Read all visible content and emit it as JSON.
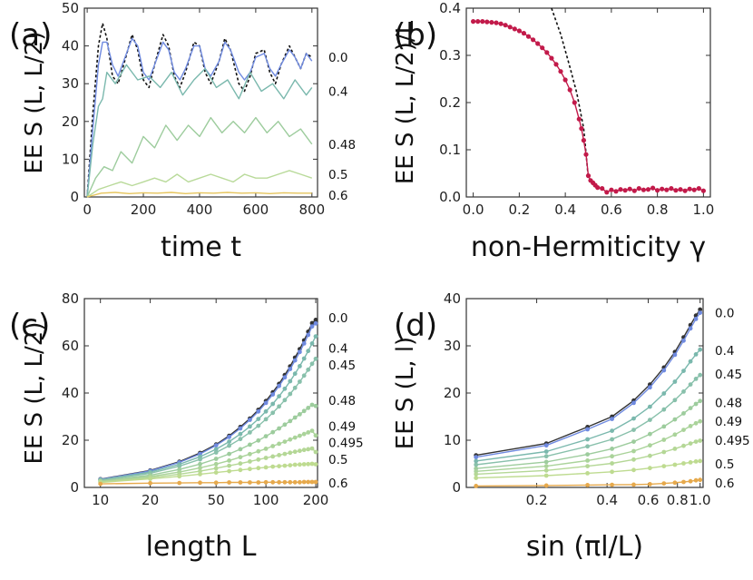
{
  "chart_data": [
    {
      "id": "a",
      "panel_label": "(a)",
      "type": "line",
      "xlabel": "time t",
      "ylabel": "EE S (L, L/2)",
      "xlim": [
        -10,
        820
      ],
      "ylim": [
        0,
        50
      ],
      "xticks": [
        0,
        200,
        400,
        600,
        800
      ],
      "yticks": [
        0,
        10,
        20,
        30,
        40,
        50
      ],
      "curve_labels": [
        {
          "text": "0.0",
          "y": 37
        },
        {
          "text": "0.4",
          "y": 28
        },
        {
          "text": "0.48",
          "y": 14
        },
        {
          "text": "0.5",
          "y": 6
        },
        {
          "text": "0.6",
          "y": 0.5
        }
      ],
      "series": [
        {
          "name": "hermitian-reference",
          "color": "#111111",
          "dashed": true,
          "x": [
            0,
            20,
            40,
            55,
            70,
            90,
            110,
            130,
            160,
            180,
            200,
            220,
            240,
            270,
            290,
            310,
            330,
            350,
            380,
            400,
            420,
            440,
            470,
            490,
            510,
            540,
            560,
            580,
            600,
            630,
            650,
            670,
            690,
            720,
            740,
            760,
            780,
            800
          ],
          "y": [
            0,
            22,
            40,
            46,
            42,
            32,
            30,
            35,
            43,
            39,
            31,
            29,
            35,
            43,
            40,
            32,
            29,
            33,
            41,
            40,
            33,
            30,
            36,
            42,
            39,
            30,
            28,
            32,
            38,
            39,
            33,
            30,
            35,
            40,
            37,
            34,
            38,
            37
          ]
        },
        {
          "name": "gamma-0.0",
          "color": "#6f8ae0",
          "x": [
            0,
            20,
            40,
            55,
            70,
            90,
            110,
            130,
            160,
            180,
            200,
            220,
            240,
            270,
            290,
            310,
            330,
            350,
            380,
            400,
            420,
            440,
            470,
            490,
            510,
            540,
            560,
            580,
            600,
            630,
            650,
            670,
            690,
            720,
            740,
            760,
            780,
            800
          ],
          "y": [
            0,
            18,
            35,
            41,
            41,
            35,
            32,
            36,
            42,
            40,
            33,
            31,
            35,
            41,
            39,
            33,
            31,
            34,
            40,
            40,
            34,
            32,
            36,
            41,
            39,
            33,
            31,
            33,
            37,
            38,
            34,
            32,
            35,
            39,
            37,
            34,
            38,
            36
          ]
        },
        {
          "name": "gamma-0.4",
          "color": "#7ab8ad",
          "x": [
            0,
            20,
            40,
            55,
            70,
            100,
            140,
            180,
            220,
            260,
            300,
            340,
            380,
            420,
            460,
            500,
            540,
            580,
            620,
            660,
            700,
            740,
            780,
            800
          ],
          "y": [
            0,
            14,
            24,
            26,
            33,
            30,
            35,
            31,
            32,
            29,
            33,
            27,
            31,
            34,
            29,
            31,
            26,
            33,
            28,
            30,
            26,
            31,
            27,
            29
          ]
        },
        {
          "name": "gamma-0.48",
          "color": "#9dcc9d",
          "x": [
            0,
            30,
            60,
            90,
            120,
            160,
            200,
            240,
            280,
            320,
            360,
            400,
            440,
            480,
            520,
            560,
            600,
            640,
            680,
            720,
            760,
            800
          ],
          "y": [
            0,
            5,
            8,
            7,
            12,
            9,
            16,
            13,
            19,
            15,
            19,
            16,
            21,
            17,
            20,
            17,
            21,
            17,
            20,
            16,
            18,
            14
          ]
        },
        {
          "name": "gamma-0.5",
          "color": "#b9da9a",
          "x": [
            0,
            40,
            80,
            120,
            160,
            200,
            240,
            280,
            320,
            360,
            400,
            440,
            480,
            520,
            560,
            600,
            640,
            680,
            720,
            760,
            800
          ],
          "y": [
            0,
            2,
            3,
            4,
            3,
            4,
            5,
            4,
            6,
            4,
            5,
            6,
            5,
            4,
            6,
            5,
            5,
            6,
            7,
            6,
            5
          ]
        },
        {
          "name": "gamma-0.6",
          "color": "#e6c55e",
          "x": [
            0,
            50,
            100,
            150,
            200,
            250,
            300,
            350,
            400,
            450,
            500,
            550,
            600,
            650,
            700,
            750,
            800
          ],
          "y": [
            0,
            1.0,
            1.2,
            0.9,
            1.1,
            1.0,
            1.2,
            0.9,
            1.1,
            1.0,
            1.2,
            1.0,
            1.1,
            0.9,
            1.1,
            1.0,
            1.0
          ]
        }
      ]
    },
    {
      "id": "b",
      "panel_label": "(b)",
      "type": "line",
      "xlabel": "non-Hermiticity γ",
      "ylabel": "EE S (L, L/2)/L",
      "xlim": [
        -0.03,
        1.03
      ],
      "ylim": [
        0,
        0.4
      ],
      "xticks": [
        0.0,
        0.2,
        0.4,
        0.6,
        0.8,
        1.0
      ],
      "yticks": [
        0.0,
        0.1,
        0.2,
        0.3,
        0.4
      ],
      "series": [
        {
          "name": "fit",
          "color": "#111111",
          "dashed": true,
          "x": [
            0.34,
            0.38,
            0.42,
            0.45,
            0.48,
            0.5
          ],
          "y": [
            0.4,
            0.345,
            0.275,
            0.22,
            0.145,
            0.04
          ]
        },
        {
          "name": "data",
          "color": "#c21a4a",
          "markers": true,
          "x": [
            0.0,
            0.02,
            0.04,
            0.06,
            0.08,
            0.1,
            0.12,
            0.14,
            0.16,
            0.18,
            0.2,
            0.22,
            0.24,
            0.26,
            0.28,
            0.3,
            0.32,
            0.34,
            0.36,
            0.38,
            0.4,
            0.42,
            0.44,
            0.46,
            0.47,
            0.48,
            0.49,
            0.5,
            0.51,
            0.52,
            0.53,
            0.54,
            0.56,
            0.58,
            0.6,
            0.62,
            0.64,
            0.66,
            0.68,
            0.7,
            0.72,
            0.74,
            0.76,
            0.78,
            0.8,
            0.82,
            0.84,
            0.86,
            0.88,
            0.9,
            0.92,
            0.94,
            0.96,
            0.98,
            1.0
          ],
          "y": [
            0.372,
            0.372,
            0.372,
            0.371,
            0.37,
            0.369,
            0.367,
            0.364,
            0.36,
            0.356,
            0.352,
            0.347,
            0.34,
            0.333,
            0.325,
            0.316,
            0.306,
            0.294,
            0.281,
            0.266,
            0.248,
            0.227,
            0.2,
            0.165,
            0.145,
            0.12,
            0.09,
            0.045,
            0.035,
            0.03,
            0.025,
            0.02,
            0.018,
            0.01,
            0.015,
            0.012,
            0.016,
            0.014,
            0.017,
            0.013,
            0.018,
            0.015,
            0.016,
            0.019,
            0.014,
            0.017,
            0.015,
            0.018,
            0.014,
            0.016,
            0.013,
            0.017,
            0.015,
            0.018,
            0.013
          ]
        }
      ]
    },
    {
      "id": "c",
      "panel_label": "(c)",
      "type": "line",
      "log_x": true,
      "xlabel": "length L",
      "ylabel": "EE S (L, L/2)",
      "xlim": [
        8,
        205
      ],
      "ylim": [
        0,
        80
      ],
      "xticks": [
        10,
        20,
        50,
        100,
        200
      ],
      "yticks": [
        0,
        20,
        40,
        60,
        80
      ],
      "curve_labels": [
        {
          "text": "0.0",
          "y": 72
        },
        {
          "text": "0.4",
          "y": 59
        },
        {
          "text": "0.45",
          "y": 52
        },
        {
          "text": "0.48",
          "y": 37
        },
        {
          "text": "0.49",
          "y": 26
        },
        {
          "text": "0.495",
          "y": 19
        },
        {
          "text": "0.5",
          "y": 12
        },
        {
          "text": "0.6",
          "y": 2
        }
      ],
      "x": [
        10,
        20,
        30,
        40,
        50,
        60,
        70,
        80,
        90,
        100,
        110,
        120,
        130,
        140,
        150,
        160,
        170,
        180,
        190,
        200
      ],
      "series": [
        {
          "name": "gamma-0.0-ref",
          "color": "#333333",
          "values": [
            3.5,
            7.2,
            10.9,
            14.6,
            18.2,
            21.9,
            25.6,
            29.2,
            32.9,
            36.6,
            40.3,
            43.9,
            47.6,
            51.3,
            55.0,
            58.6,
            62.3,
            66.0,
            69.6,
            71.0
          ]
        },
        {
          "name": "gamma-0.0",
          "color": "#6f8ae0",
          "values": [
            3.4,
            7.0,
            10.6,
            14.2,
            17.8,
            21.4,
            25.0,
            28.6,
            32.2,
            35.8,
            39.4,
            43.0,
            46.6,
            50.2,
            53.8,
            57.4,
            61.0,
            64.6,
            68.2,
            69.5
          ]
        },
        {
          "name": "gamma-0.4",
          "color": "#7ab8ad",
          "values": [
            3.2,
            6.5,
            9.8,
            13.0,
            16.2,
            19.4,
            22.6,
            25.8,
            29.0,
            32.2,
            35.4,
            38.6,
            41.8,
            45.0,
            48.2,
            51.4,
            54.6,
            57.8,
            61.0,
            64.0
          ]
        },
        {
          "name": "gamma-0.45",
          "color": "#88c0ab",
          "values": [
            3.0,
            6.0,
            9.0,
            11.9,
            14.8,
            17.7,
            20.5,
            23.3,
            26.1,
            28.9,
            31.6,
            34.3,
            37.0,
            39.6,
            42.2,
            44.8,
            47.4,
            49.9,
            52.4,
            54.5
          ]
        },
        {
          "name": "gamma-0.48",
          "color": "#9dcc9d",
          "values": [
            2.7,
            5.2,
            7.6,
            9.9,
            12.1,
            14.2,
            16.2,
            18.1,
            19.9,
            21.7,
            23.4,
            25.0,
            26.6,
            28.1,
            29.6,
            31.0,
            32.4,
            33.7,
            35.0,
            34.5
          ]
        },
        {
          "name": "gamma-0.49",
          "color": "#aad39a",
          "values": [
            2.5,
            4.6,
            6.5,
            8.3,
            9.9,
            11.4,
            12.8,
            14.1,
            15.3,
            16.4,
            17.5,
            18.5,
            19.4,
            20.3,
            21.1,
            21.9,
            22.6,
            23.3,
            24.0,
            22.0
          ]
        },
        {
          "name": "gamma-0.495",
          "color": "#b4d796",
          "values": [
            2.3,
            4.1,
            5.6,
            6.9,
            8.1,
            9.2,
            10.1,
            11.0,
            11.8,
            12.5,
            13.1,
            13.7,
            14.2,
            14.7,
            15.1,
            15.5,
            15.9,
            16.2,
            16.5,
            15.0
          ]
        },
        {
          "name": "gamma-0.5",
          "color": "#bedb90",
          "values": [
            2.1,
            3.6,
            4.7,
            5.6,
            6.3,
            6.9,
            7.4,
            7.8,
            8.2,
            8.5,
            8.8,
            9.0,
            9.2,
            9.4,
            9.6,
            9.7,
            9.8,
            9.9,
            10.0,
            9.8
          ]
        },
        {
          "name": "gamma-0.6",
          "color": "#e6a94c",
          "values": [
            1.5,
            1.8,
            1.9,
            2.0,
            2.0,
            2.1,
            2.1,
            2.1,
            2.1,
            2.2,
            2.2,
            2.2,
            2.2,
            2.2,
            2.2,
            2.2,
            2.3,
            2.3,
            2.3,
            2.3
          ]
        }
      ]
    },
    {
      "id": "d",
      "panel_label": "(d)",
      "type": "line",
      "log_x": true,
      "xlabel": "sin (πl/L)",
      "ylabel": "EE S (L, l)",
      "xlim": [
        0.1,
        1.03
      ],
      "ylim": [
        0,
        40
      ],
      "xticks": [
        0.2,
        0.4,
        0.6,
        0.8,
        1.0
      ],
      "xtick_labels": [
        "0.2",
        "0.4",
        "0.6",
        "0.8",
        "1.0"
      ],
      "yticks": [
        0,
        10,
        20,
        30,
        40
      ],
      "curve_labels": [
        {
          "text": "0.0",
          "y": 37
        },
        {
          "text": "0.4",
          "y": 29
        },
        {
          "text": "0.45",
          "y": 24
        },
        {
          "text": "0.48",
          "y": 18
        },
        {
          "text": "0.49",
          "y": 14
        },
        {
          "text": "0.495",
          "y": 10
        },
        {
          "text": "0.5",
          "y": 5
        },
        {
          "text": "0.6",
          "y": 1
        }
      ],
      "x": [
        0.11,
        0.22,
        0.33,
        0.42,
        0.52,
        0.61,
        0.7,
        0.78,
        0.85,
        0.91,
        0.96,
        1.0
      ],
      "series": [
        {
          "name": "gamma-0.0-ref",
          "color": "#333333",
          "values": [
            6.8,
            9.3,
            12.8,
            15.0,
            18.4,
            21.8,
            25.4,
            28.7,
            31.8,
            34.4,
            36.4,
            37.7
          ]
        },
        {
          "name": "gamma-0.0",
          "color": "#6f8ae0",
          "values": [
            6.4,
            8.9,
            12.3,
            14.5,
            17.9,
            21.2,
            24.8,
            28.1,
            31.1,
            33.7,
            35.7,
            37.0
          ]
        },
        {
          "name": "gamma-0.4",
          "color": "#7ab8ad",
          "values": [
            5.6,
            7.6,
            10.2,
            12.0,
            14.6,
            17.1,
            19.9,
            22.4,
            24.7,
            26.7,
            28.2,
            29.2
          ]
        },
        {
          "name": "gamma-0.45",
          "color": "#88c0ab",
          "values": [
            4.8,
            6.6,
            8.7,
            10.2,
            12.2,
            14.3,
            16.5,
            18.5,
            20.3,
            21.8,
            23.0,
            23.8
          ]
        },
        {
          "name": "gamma-0.48",
          "color": "#9dcc9d",
          "values": [
            4.0,
            5.4,
            7.0,
            8.2,
            9.7,
            11.3,
            12.9,
            14.4,
            15.7,
            16.8,
            17.7,
            18.3
          ]
        },
        {
          "name": "gamma-0.49",
          "color": "#aad39a",
          "values": [
            3.4,
            4.5,
            5.7,
            6.6,
            7.7,
            8.9,
            10.1,
            11.2,
            12.2,
            13.0,
            13.6,
            14.0
          ]
        },
        {
          "name": "gamma-0.495",
          "color": "#b4d796",
          "values": [
            2.8,
            3.6,
            4.5,
            5.1,
            5.9,
            6.7,
            7.5,
            8.2,
            8.8,
            9.3,
            9.7,
            9.9
          ]
        },
        {
          "name": "gamma-0.5",
          "color": "#bedb90",
          "values": [
            2.0,
            2.5,
            3.0,
            3.3,
            3.7,
            4.1,
            4.5,
            4.8,
            5.1,
            5.3,
            5.5,
            5.6
          ]
        },
        {
          "name": "gamma-0.6",
          "color": "#e6a94c",
          "values": [
            0.3,
            0.4,
            0.5,
            0.55,
            0.6,
            0.7,
            0.85,
            1.0,
            1.15,
            1.3,
            1.5,
            1.6
          ]
        }
      ]
    }
  ]
}
